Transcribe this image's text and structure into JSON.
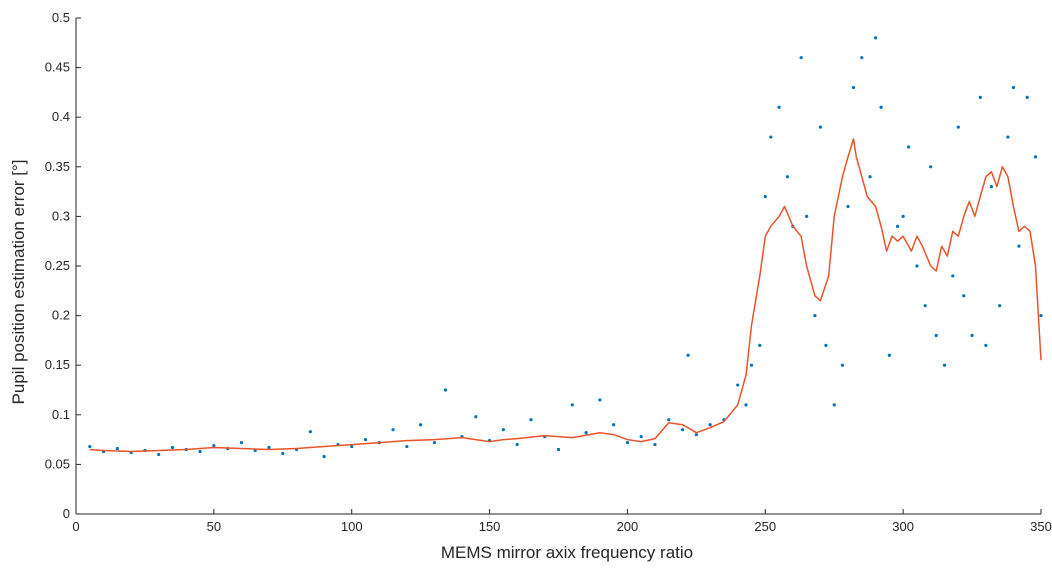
{
  "chart_data": {
    "type": "scatter",
    "title": "",
    "xlabel": "MEMS mirror axix frequency ratio",
    "ylabel": "Pupil position estimation error [°]",
    "xlim": [
      0,
      350
    ],
    "ylim": [
      0,
      0.5
    ],
    "grid": false,
    "xticks": [
      0,
      50,
      100,
      150,
      200,
      250,
      300,
      350
    ],
    "xtick_labels": [
      "0",
      "50",
      "100",
      "150",
      "200",
      "250",
      "300",
      "350"
    ],
    "yticks": [
      0,
      0.05,
      0.1,
      0.15,
      0.2,
      0.25,
      0.3,
      0.35,
      0.4,
      0.45,
      0.5
    ],
    "ytick_labels": [
      "0",
      "0.05",
      "0.1",
      "0.15",
      "0.2",
      "0.25",
      "0.3",
      "0.35",
      "0.4",
      "0.45",
      "0.5"
    ],
    "colors": {
      "points": "#0072bd",
      "line": "#e8542a"
    },
    "series": [
      {
        "kind": "scatter",
        "x": [
          5,
          10,
          15,
          20,
          25,
          30,
          35,
          40,
          45,
          50,
          55,
          60,
          65,
          70,
          75,
          80,
          85,
          90,
          95,
          100,
          105,
          110,
          115,
          120,
          125,
          130,
          134,
          140,
          145,
          150,
          155,
          160,
          165,
          170,
          175,
          180,
          185,
          190,
          195,
          200,
          205,
          210,
          215,
          220,
          222,
          225,
          230,
          235,
          240,
          243,
          245,
          248,
          250,
          252,
          255,
          258,
          260,
          263,
          265,
          268,
          270,
          272,
          275,
          278,
          280,
          282,
          285,
          288,
          290,
          292,
          295,
          298,
          300,
          302,
          305,
          308,
          310,
          312,
          315,
          318,
          320,
          322,
          325,
          328,
          330,
          332,
          335,
          338,
          340,
          342,
          345,
          348,
          350
        ],
        "y": [
          0.068,
          0.063,
          0.066,
          0.062,
          0.064,
          0.06,
          0.067,
          0.065,
          0.063,
          0.069,
          0.066,
          0.072,
          0.064,
          0.067,
          0.061,
          0.065,
          0.083,
          0.058,
          0.07,
          0.068,
          0.075,
          0.072,
          0.085,
          0.068,
          0.09,
          0.072,
          0.125,
          0.078,
          0.098,
          0.074,
          0.085,
          0.07,
          0.095,
          0.078,
          0.065,
          0.11,
          0.082,
          0.115,
          0.09,
          0.072,
          0.078,
          0.07,
          0.095,
          0.085,
          0.16,
          0.08,
          0.09,
          0.095,
          0.13,
          0.11,
          0.15,
          0.17,
          0.32,
          0.38,
          0.41,
          0.34,
          0.29,
          0.46,
          0.3,
          0.2,
          0.39,
          0.17,
          0.11,
          0.15,
          0.31,
          0.43,
          0.46,
          0.34,
          0.48,
          0.41,
          0.16,
          0.29,
          0.3,
          0.37,
          0.25,
          0.21,
          0.35,
          0.18,
          0.15,
          0.24,
          0.39,
          0.22,
          0.18,
          0.42,
          0.17,
          0.33,
          0.21,
          0.38,
          0.43,
          0.27,
          0.42,
          0.36,
          0.2
        ]
      },
      {
        "kind": "line",
        "x": [
          5,
          10,
          20,
          30,
          40,
          50,
          60,
          70,
          80,
          90,
          100,
          110,
          120,
          130,
          140,
          150,
          155,
          160,
          170,
          180,
          190,
          195,
          200,
          205,
          210,
          215,
          220,
          225,
          230,
          235,
          240,
          243,
          245,
          248,
          250,
          252,
          255,
          257,
          260,
          263,
          265,
          268,
          270,
          273,
          275,
          278,
          280,
          282,
          283,
          285,
          287,
          290,
          292,
          294,
          296,
          298,
          300,
          303,
          305,
          307,
          310,
          312,
          314,
          316,
          318,
          320,
          322,
          324,
          326,
          328,
          330,
          332,
          334,
          336,
          338,
          340,
          342,
          344,
          346,
          348,
          350
        ],
        "y": [
          0.065,
          0.064,
          0.063,
          0.064,
          0.065,
          0.067,
          0.066,
          0.065,
          0.066,
          0.068,
          0.07,
          0.072,
          0.074,
          0.075,
          0.077,
          0.073,
          0.075,
          0.076,
          0.079,
          0.077,
          0.082,
          0.08,
          0.075,
          0.073,
          0.076,
          0.092,
          0.09,
          0.082,
          0.087,
          0.093,
          0.11,
          0.14,
          0.19,
          0.24,
          0.28,
          0.29,
          0.3,
          0.31,
          0.29,
          0.28,
          0.25,
          0.22,
          0.215,
          0.24,
          0.3,
          0.34,
          0.36,
          0.378,
          0.36,
          0.34,
          0.32,
          0.31,
          0.29,
          0.265,
          0.28,
          0.275,
          0.28,
          0.265,
          0.28,
          0.27,
          0.25,
          0.245,
          0.27,
          0.26,
          0.285,
          0.28,
          0.3,
          0.315,
          0.3,
          0.32,
          0.34,
          0.345,
          0.33,
          0.35,
          0.34,
          0.31,
          0.285,
          0.29,
          0.285,
          0.25,
          0.155
        ]
      }
    ]
  }
}
